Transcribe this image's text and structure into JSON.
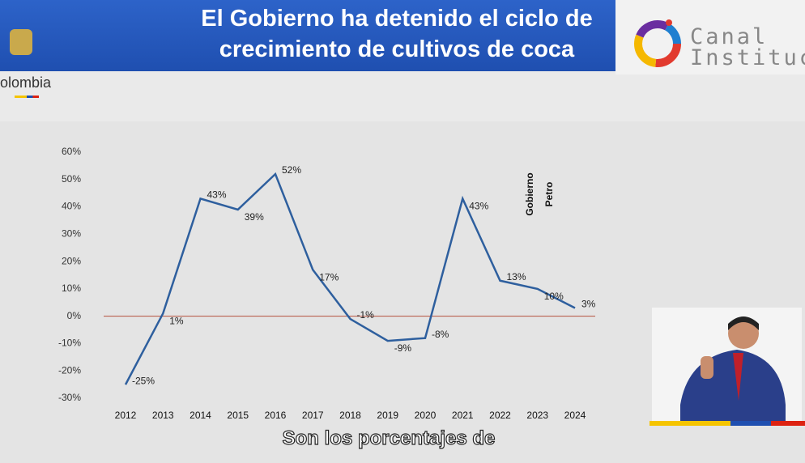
{
  "header": {
    "title": "El Gobierno ha detenido el ciclo de crecimiento de cultivos de coca",
    "channel": [
      "Canal",
      "Institucio"
    ],
    "brand": "olombia"
  },
  "chart_data": {
    "type": "line",
    "categories": [
      "2012",
      "2013",
      "2014",
      "2015",
      "2016",
      "2017",
      "2018",
      "2019",
      "2020",
      "2021",
      "2022",
      "2023",
      "2024"
    ],
    "values": [
      -25,
      1,
      43,
      39,
      52,
      17,
      -1,
      -9,
      -8,
      43,
      13,
      10,
      3
    ],
    "value_labels": [
      "-25%",
      "1%",
      "43%",
      "39%",
      "52%",
      "17%",
      "-1%",
      "-9%",
      "-8%",
      "43%",
      "13%",
      "10%",
      "3%"
    ],
    "color": "#2e5f9e",
    "ylim": [
      -30,
      60
    ],
    "yticks": [
      {
        "value": -30,
        "label": "-30%"
      },
      {
        "value": -20,
        "label": "-20%"
      },
      {
        "value": -10,
        "label": "-10%"
      },
      {
        "value": 0,
        "label": "0%"
      },
      {
        "value": 10,
        "label": "10%"
      },
      {
        "value": 20,
        "label": "20%"
      },
      {
        "value": 30,
        "label": "30%"
      },
      {
        "value": 40,
        "label": "40%"
      },
      {
        "value": 50,
        "label": "50%"
      },
      {
        "value": 60,
        "label": "60%"
      }
    ],
    "annotation": [
      "Gobierno",
      "Petro"
    ]
  },
  "caption": "Son los porcentajes de"
}
